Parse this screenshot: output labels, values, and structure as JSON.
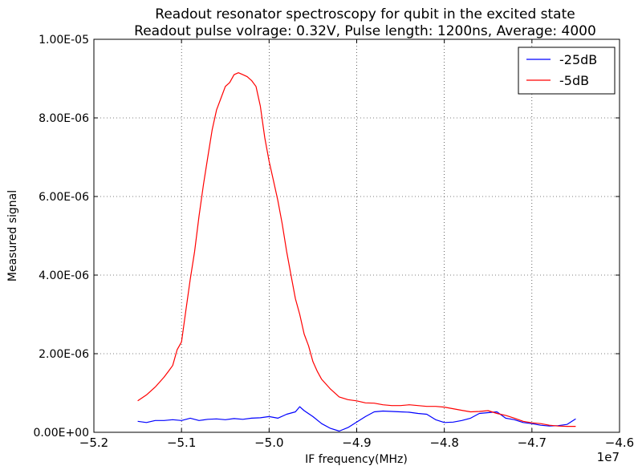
{
  "chart_data": {
    "type": "line",
    "title": "Readout resonator spectroscopy for qubit in the excited state",
    "subtitle": "Readout pulse volrage: 0.32V, Pulse length: 1200ns, Average: 4000",
    "xlabel": "IF frequency(MHz)",
    "ylabel": "Measured signal",
    "x_offset_label": "1e7",
    "xlim": [
      -5.2,
      -4.6
    ],
    "ylim": [
      0,
      1e-05
    ],
    "x_ticks": [
      -5.2,
      -5.1,
      -5.0,
      -4.9,
      -4.8,
      -4.7,
      -4.6
    ],
    "x_tick_labels": [
      "−5.2",
      "−5.1",
      "−5.0",
      "−4.9",
      "−4.8",
      "−4.7",
      "−4.6"
    ],
    "y_ticks": [
      0,
      2e-06,
      4e-06,
      6e-06,
      8e-06,
      1e-05
    ],
    "y_tick_labels": [
      "0.00E+00",
      "2.00E-06",
      "4.00E-06",
      "6.00E-06",
      "8.00E-06",
      "1.00E-05"
    ],
    "grid": true,
    "legend_position": "top-right",
    "series": [
      {
        "name": "-25dB",
        "color": "#0000ff",
        "x": [
          -5.15,
          -5.14,
          -5.13,
          -5.12,
          -5.11,
          -5.1,
          -5.09,
          -5.08,
          -5.07,
          -5.06,
          -5.05,
          -5.04,
          -5.03,
          -5.02,
          -5.01,
          -5.0,
          -4.99,
          -4.98,
          -4.97,
          -4.965,
          -4.96,
          -4.95,
          -4.94,
          -4.93,
          -4.92,
          -4.91,
          -4.9,
          -4.89,
          -4.88,
          -4.87,
          -4.86,
          -4.85,
          -4.84,
          -4.83,
          -4.82,
          -4.81,
          -4.8,
          -4.79,
          -4.78,
          -4.77,
          -4.76,
          -4.75,
          -4.74,
          -4.73,
          -4.72,
          -4.71,
          -4.7,
          -4.69,
          -4.68,
          -4.67,
          -4.66,
          -4.65
        ],
        "y": [
          2.8e-07,
          2.5e-07,
          3e-07,
          3e-07,
          3.2e-07,
          3e-07,
          3.6e-07,
          3e-07,
          3.3e-07,
          3.4e-07,
          3.2e-07,
          3.5e-07,
          3.3e-07,
          3.6e-07,
          3.7e-07,
          4e-07,
          3.6e-07,
          4.6e-07,
          5.2e-07,
          6.5e-07,
          5.5e-07,
          4e-07,
          2.2e-07,
          1e-07,
          3e-08,
          1.2e-07,
          2.6e-07,
          4e-07,
          5.2e-07,
          5.4e-07,
          5.3e-07,
          5.2e-07,
          5.1e-07,
          4.8e-07,
          4.6e-07,
          3.2e-07,
          2.5e-07,
          2.6e-07,
          3e-07,
          3.6e-07,
          4.8e-07,
          5e-07,
          5.2e-07,
          3.6e-07,
          3.2e-07,
          2.5e-07,
          2.2e-07,
          1.8e-07,
          1.6e-07,
          1.7e-07,
          2e-07,
          3.4e-07
        ]
      },
      {
        "name": "-5dB",
        "color": "#ff0000",
        "x": [
          -5.15,
          -5.14,
          -5.13,
          -5.12,
          -5.115,
          -5.11,
          -5.105,
          -5.1,
          -5.095,
          -5.09,
          -5.085,
          -5.08,
          -5.075,
          -5.07,
          -5.065,
          -5.06,
          -5.055,
          -5.05,
          -5.045,
          -5.04,
          -5.035,
          -5.03,
          -5.025,
          -5.02,
          -5.015,
          -5.01,
          -5.005,
          -5.0,
          -4.995,
          -4.99,
          -4.985,
          -4.98,
          -4.975,
          -4.97,
          -4.965,
          -4.96,
          -4.955,
          -4.95,
          -4.945,
          -4.94,
          -4.93,
          -4.92,
          -4.91,
          -4.9,
          -4.89,
          -4.88,
          -4.87,
          -4.86,
          -4.85,
          -4.84,
          -4.83,
          -4.82,
          -4.81,
          -4.8,
          -4.79,
          -4.78,
          -4.77,
          -4.76,
          -4.75,
          -4.74,
          -4.73,
          -4.72,
          -4.71,
          -4.7,
          -4.69,
          -4.68,
          -4.67,
          -4.66,
          -4.65
        ],
        "y": [
          8e-07,
          9.5e-07,
          1.15e-06,
          1.4e-06,
          1.55e-06,
          1.7e-06,
          2.1e-06,
          2.3e-06,
          3.1e-06,
          3.9e-06,
          4.6e-06,
          5.5e-06,
          6.3e-06,
          7e-06,
          7.7e-06,
          8.2e-06,
          8.5e-06,
          8.8e-06,
          8.9e-06,
          9.1e-06,
          9.15e-06,
          9.1e-06,
          9.05e-06,
          8.95e-06,
          8.8e-06,
          8.3e-06,
          7.5e-06,
          6.9e-06,
          6.4e-06,
          5.9e-06,
          5.3e-06,
          4.6e-06,
          4e-06,
          3.4e-06,
          3e-06,
          2.5e-06,
          2.2e-06,
          1.8e-06,
          1.55e-06,
          1.35e-06,
          1.1e-06,
          9e-07,
          8.3e-07,
          8e-07,
          7.5e-07,
          7.4e-07,
          7e-07,
          6.8e-07,
          6.8e-07,
          7e-07,
          6.8e-07,
          6.6e-07,
          6.6e-07,
          6.4e-07,
          6e-07,
          5.6e-07,
          5.2e-07,
          5.3e-07,
          5.5e-07,
          4.8e-07,
          4.3e-07,
          3.6e-07,
          2.8e-07,
          2.4e-07,
          2.2e-07,
          1.8e-07,
          1.6e-07,
          1.5e-07,
          1.5e-07
        ]
      }
    ]
  }
}
